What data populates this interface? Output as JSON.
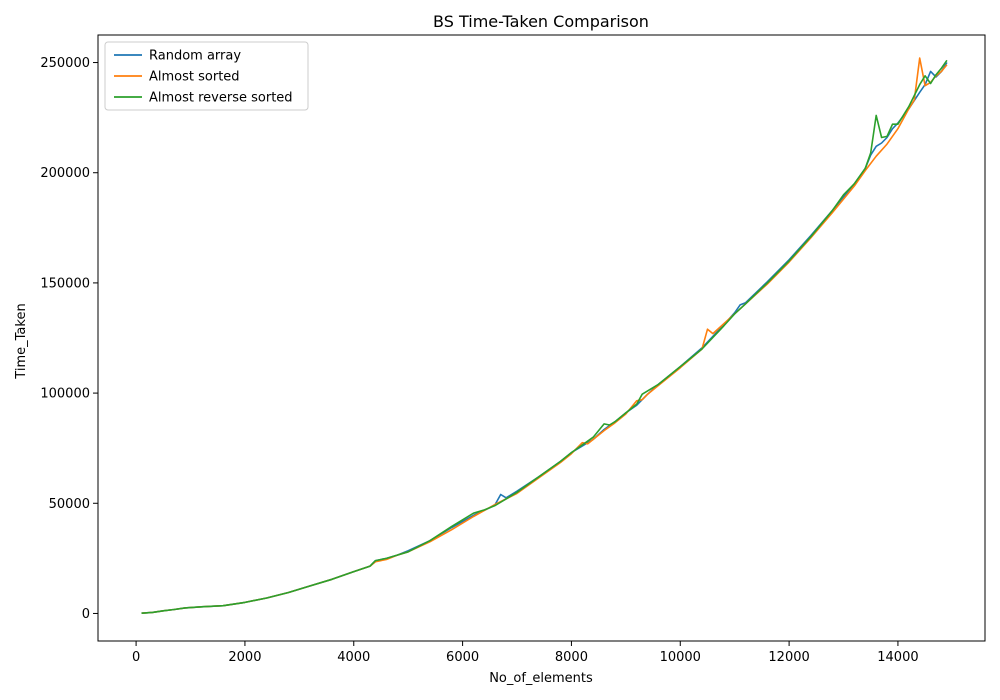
{
  "chart_data": {
    "type": "line",
    "title": "BS Time-Taken Comparison",
    "xlabel": "No_of_elements",
    "ylabel": "Time_Taken",
    "xlim": [
      -700,
      15600
    ],
    "ylim": [
      -12500,
      262500
    ],
    "xticks": [
      0,
      2000,
      4000,
      6000,
      8000,
      10000,
      12000,
      14000
    ],
    "yticks": [
      0,
      50000,
      100000,
      150000,
      200000,
      250000
    ],
    "grid": false,
    "legend_position": "upper-left",
    "series": [
      {
        "name": "Random array",
        "color": "#1f77b4",
        "x": [
          100,
          300,
          500,
          700,
          900,
          1200,
          1600,
          2000,
          2400,
          2800,
          3200,
          3600,
          4000,
          4300,
          4400,
          4600,
          4800,
          5000,
          5400,
          5800,
          6200,
          6500,
          6600,
          6700,
          6800,
          7000,
          7400,
          7800,
          8000,
          8400,
          8600,
          8800,
          9000,
          9200,
          9400,
          9600,
          10000,
          10400,
          10800,
          11000,
          11100,
          11200,
          11600,
          12000,
          12400,
          12800,
          13200,
          13400,
          13500,
          13600,
          13700,
          13800,
          13900,
          14000,
          14200,
          14400,
          14500,
          14600,
          14700,
          14800,
          14900
        ],
        "y": [
          100,
          500,
          1200,
          1800,
          2500,
          3000,
          3500,
          5000,
          7000,
          9500,
          12500,
          15500,
          19000,
          21500,
          24000,
          25000,
          26500,
          28500,
          33000,
          39000,
          44500,
          48000,
          49500,
          54000,
          52500,
          55500,
          62000,
          69000,
          73000,
          79000,
          83500,
          87000,
          91000,
          94500,
          99500,
          104000,
          112000,
          120500,
          131000,
          136500,
          140000,
          141000,
          150500,
          160500,
          171500,
          183000,
          195000,
          202000,
          208000,
          212000,
          213500,
          216000,
          220000,
          222500,
          229000,
          236500,
          240000,
          246000,
          243500,
          246000,
          250000
        ]
      },
      {
        "name": "Almost sorted",
        "color": "#ff7f0e",
        "x": [
          100,
          300,
          500,
          700,
          900,
          1200,
          1600,
          2000,
          2400,
          2800,
          3200,
          3600,
          4000,
          4300,
          4400,
          4600,
          4800,
          5000,
          5400,
          5800,
          6200,
          6600,
          6800,
          7000,
          7400,
          7800,
          8000,
          8200,
          8300,
          8600,
          8800,
          9000,
          9200,
          9300,
          9400,
          9600,
          10000,
          10400,
          10500,
          10600,
          10800,
          11000,
          11200,
          11600,
          12000,
          12400,
          12800,
          13200,
          13400,
          13600,
          13800,
          14000,
          14200,
          14300,
          14400,
          14500,
          14600,
          14700,
          14800,
          14900
        ],
        "y": [
          100,
          500,
          1200,
          1800,
          2500,
          3000,
          3500,
          5000,
          7000,
          9500,
          12500,
          15500,
          19000,
          21500,
          23500,
          24500,
          26500,
          28000,
          32500,
          38000,
          44000,
          49500,
          52000,
          54500,
          61500,
          68500,
          72500,
          77500,
          77000,
          83000,
          86500,
          90500,
          96500,
          97000,
          99500,
          103500,
          111500,
          120000,
          129000,
          127000,
          131500,
          136000,
          140500,
          149500,
          159500,
          170500,
          182000,
          194000,
          201000,
          207500,
          213000,
          220000,
          229000,
          233000,
          252000,
          239500,
          241000,
          244000,
          246000,
          249000
        ]
      },
      {
        "name": "Almost reverse sorted",
        "color": "#2ca02c",
        "x": [
          100,
          300,
          500,
          700,
          900,
          1200,
          1600,
          2000,
          2400,
          2800,
          3200,
          3600,
          4000,
          4300,
          4400,
          4600,
          4800,
          5000,
          5400,
          5800,
          6200,
          6400,
          6600,
          6800,
          7000,
          7400,
          7800,
          8000,
          8400,
          8600,
          8700,
          8800,
          9000,
          9200,
          9300,
          9600,
          10000,
          10400,
          10800,
          11000,
          11200,
          11600,
          12000,
          12400,
          12800,
          13000,
          13200,
          13400,
          13500,
          13600,
          13700,
          13800,
          13900,
          14000,
          14200,
          14400,
          14500,
          14600,
          14700,
          14800,
          14900
        ],
        "y": [
          100,
          500,
          1200,
          1800,
          2500,
          3000,
          3500,
          5000,
          7000,
          9500,
          12500,
          15500,
          19000,
          21500,
          24000,
          25000,
          26500,
          28000,
          33000,
          39500,
          45500,
          47000,
          49000,
          52000,
          55000,
          62000,
          69000,
          73000,
          80000,
          86000,
          85500,
          87000,
          91000,
          95000,
          99500,
          104000,
          112000,
          120000,
          130500,
          136000,
          140500,
          150000,
          160000,
          171000,
          183000,
          190000,
          195000,
          202000,
          209000,
          226000,
          216000,
          216500,
          222000,
          222000,
          230000,
          240000,
          244000,
          240500,
          244500,
          247500,
          251000
        ]
      }
    ]
  }
}
